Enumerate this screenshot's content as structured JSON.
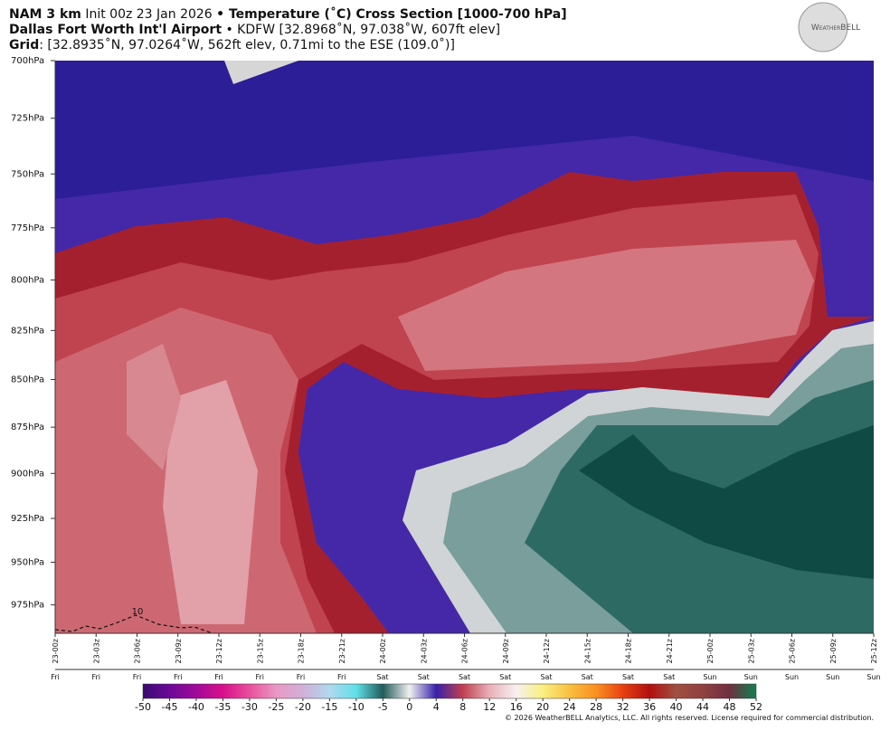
{
  "chart_data": {
    "type": "cross-section",
    "header": {
      "model": "NAM 3 km",
      "init": "Init 00z 23 Jan 2026",
      "product": "• Temperature (˚C) Cross Section [1000-700 hPa]",
      "station_name": "Dallas Fort Worth Int'l Airport",
      "station": "• KDFW [32.8968˚N, 97.038˚W, 607ft elev]",
      "grid_key": "Grid",
      "grid": ": [32.8935˚N, 97.0264˚W, 562ft elev, 0.71mi to the ESE (109.0˚)]"
    },
    "logo": "WeatherBELL",
    "log_y": true,
    "ylim": [
      700,
      992
    ],
    "yticks": [
      {
        "value": 700,
        "label": "700hPa"
      },
      {
        "value": 725,
        "label": "725hPa"
      },
      {
        "value": 750,
        "label": "750hPa"
      },
      {
        "value": 775,
        "label": "775hPa"
      },
      {
        "value": 800,
        "label": "800hPa"
      },
      {
        "value": 825,
        "label": "825hPa"
      },
      {
        "value": 850,
        "label": "850hPa"
      },
      {
        "value": 875,
        "label": "875hPa"
      },
      {
        "value": 900,
        "label": "900hPa"
      },
      {
        "value": 925,
        "label": "925hPa"
      },
      {
        "value": 950,
        "label": "950hPa"
      },
      {
        "value": 975,
        "label": "975hPa"
      }
    ],
    "categories": [
      "23-00z",
      "23-03z",
      "23-06z",
      "23-09z",
      "23-12z",
      "23-15z",
      "23-18z",
      "23-21z",
      "24-00z",
      "24-03z",
      "24-06z",
      "24-09z",
      "24-12z",
      "24-15z",
      "24-18z",
      "24-21z",
      "25-00z",
      "25-03z",
      "25-06z",
      "25-09z",
      "25-12z"
    ],
    "days": [
      "Fri",
      "Fri",
      "Fri",
      "Fri",
      "Fri",
      "Fri",
      "Fri",
      "Fri",
      "Sat",
      "Sat",
      "Sat",
      "Sat",
      "Sat",
      "Sat",
      "Sat",
      "Sat",
      "Sun",
      "Sun",
      "Sun",
      "Sun",
      "Sun"
    ],
    "contour_label": 10,
    "colorbar": {
      "ticks": [
        -50,
        -45,
        -40,
        -35,
        -30,
        -25,
        -20,
        -15,
        -10,
        -5,
        0,
        4,
        8,
        12,
        16,
        20,
        24,
        28,
        32,
        36,
        40,
        44,
        48,
        52
      ],
      "colors": [
        "#3a0a70",
        "#6a0a98",
        "#a00a98",
        "#d8108a",
        "#e8509c",
        "#e898c4",
        "#d0b0d8",
        "#b0d8ee",
        "#60e0e8",
        "#205c5a",
        "#f0f0f0",
        "#3820a8",
        "#c04050",
        "#e8b0b8",
        "#f8f0f0",
        "#f8f080",
        "#f8c040",
        "#f89020",
        "#e84010",
        "#b01010",
        "#a05040",
        "#904040",
        "#703040",
        "#108050"
      ]
    },
    "footer": "© 2026 WeatherBELL Analytics, LLC. All rights reserved. License required for commercial distribution."
  }
}
